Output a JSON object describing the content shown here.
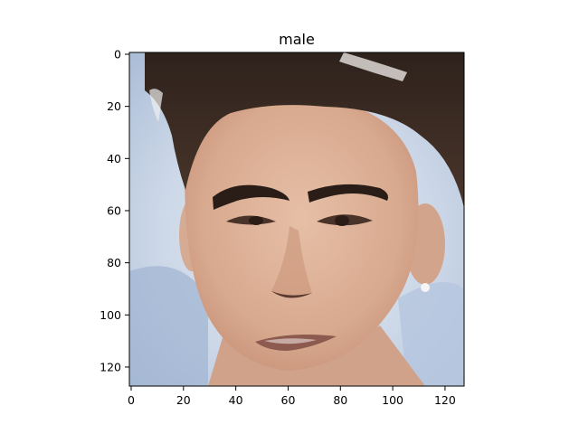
{
  "figure": {
    "title": "male",
    "x_ticks": [
      "0",
      "20",
      "40",
      "60",
      "80",
      "100",
      "120"
    ],
    "y_ticks": [
      "0",
      "20",
      "40",
      "60",
      "80",
      "100",
      "120"
    ]
  },
  "image": {
    "subject": "face portrait",
    "colors": {
      "background": "#b9c8de",
      "skin": "#d9ad94",
      "hair": "#3a2a22",
      "eyebrow": "#2a1d18"
    }
  }
}
